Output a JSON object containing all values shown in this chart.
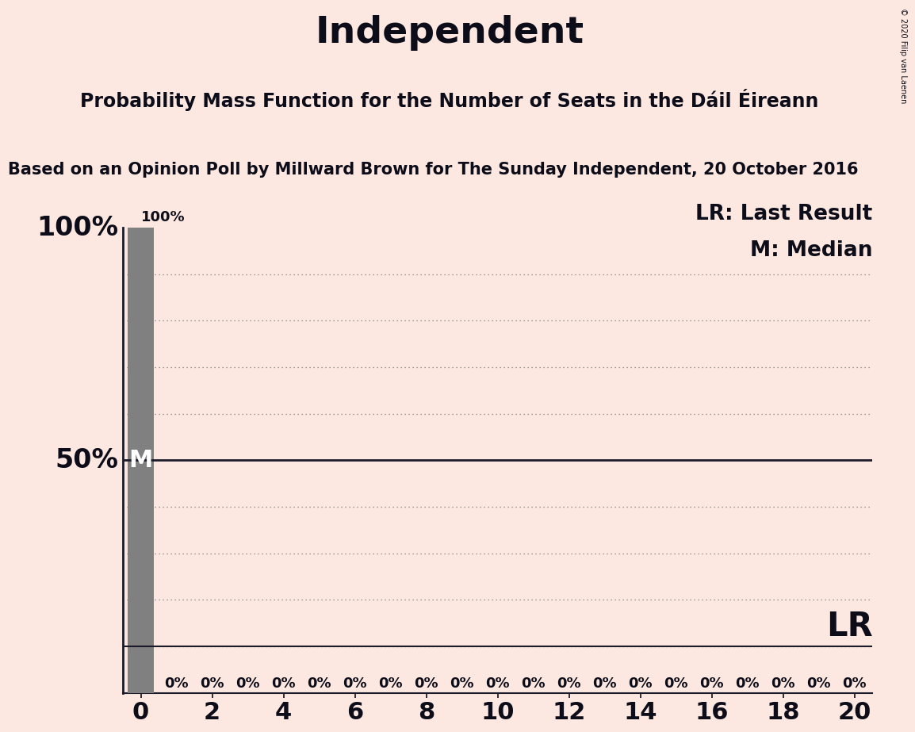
{
  "title": "Independent",
  "subtitle": "Probability Mass Function for the Number of Seats in the Dáil Éireann",
  "source_line": "Based on an Opinion Poll by Millward Brown for The Sunday Independent, 20 October 2016",
  "copyright": "© 2020 Filip van Laenen",
  "background_color": "#fce8e0",
  "bar_color": "#808080",
  "median_value": 0.5,
  "lr_value": 0.1,
  "lr_label": "LR",
  "lr_label_right": "LR: Last Result",
  "m_label_right": "M: Median",
  "x_min": -0.5,
  "x_max": 20.5,
  "y_min": 0.0,
  "y_max": 1.0,
  "x_ticks": [
    0,
    2,
    4,
    6,
    8,
    10,
    12,
    14,
    16,
    18,
    20
  ],
  "x_tick_labels": [
    "0",
    "2",
    "4",
    "6",
    "8",
    "10",
    "12",
    "14",
    "16",
    "18",
    "20"
  ],
  "y_ticks_data": [
    0.5,
    1.0
  ],
  "y_tick_labels": [
    "50%",
    "100%"
  ],
  "bar_values": [
    1.0,
    0.0,
    0.0,
    0.0,
    0.0,
    0.0,
    0.0,
    0.0,
    0.0,
    0.0,
    0.0,
    0.0,
    0.0,
    0.0,
    0.0,
    0.0,
    0.0,
    0.0,
    0.0,
    0.0,
    0.0
  ],
  "bar_positions": [
    0,
    1,
    2,
    3,
    4,
    5,
    6,
    7,
    8,
    9,
    10,
    11,
    12,
    13,
    14,
    15,
    16,
    17,
    18,
    19,
    20
  ],
  "bar_labels": [
    "100%",
    "0%",
    "0%",
    "0%",
    "0%",
    "0%",
    "0%",
    "0%",
    "0%",
    "0%",
    "0%",
    "0%",
    "0%",
    "0%",
    "0%",
    "0%",
    "0%",
    "0%",
    "0%",
    "0%",
    "0%"
  ],
  "bar_width": 0.75,
  "grid_y_values": [
    0.1,
    0.2,
    0.3,
    0.4,
    0.6,
    0.7,
    0.8,
    0.9
  ],
  "title_fontsize": 34,
  "subtitle_fontsize": 17,
  "source_fontsize": 15,
  "ytick_fontsize": 24,
  "xtick_fontsize": 22,
  "bar_label_fontsize": 13,
  "annotation_fontsize": 22,
  "legend_fontsize": 19,
  "lr_label_fontsize": 30,
  "text_color": "#0d0d1a",
  "solid_line_color": "#1a1a2a",
  "dotted_line_color": "#777777"
}
